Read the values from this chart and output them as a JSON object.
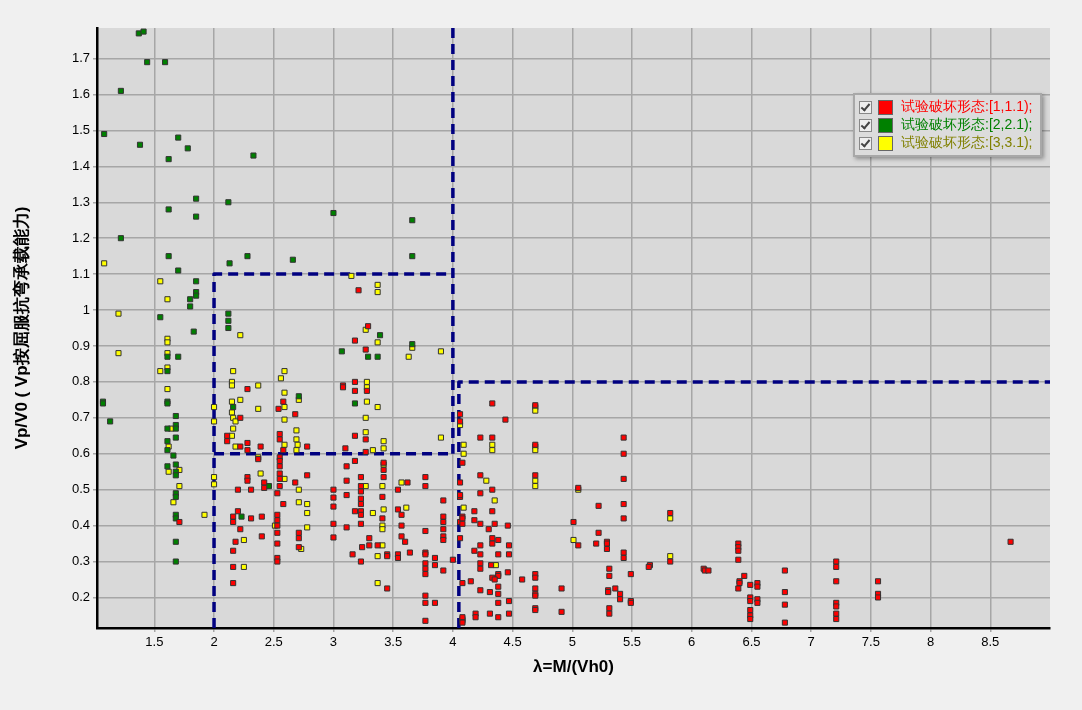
{
  "chart_data": {
    "type": "scatter",
    "xlabel": "λ=M/(Vh0)",
    "ylabel": "Vp/V0 ( Vp按屈服抗弯承载能力)",
    "xlim": [
      1.02,
      9.0
    ],
    "ylim": [
      0.115,
      1.785
    ],
    "xticks": [
      1.5,
      2,
      2.5,
      3,
      3.5,
      4,
      4.5,
      5,
      5.5,
      6,
      6.5,
      7,
      7.5,
      8,
      8.5
    ],
    "yticks": [
      0.2,
      0.3,
      0.4,
      0.5,
      0.6,
      0.7,
      0.8,
      0.9,
      1,
      1.1,
      1.2,
      1.3,
      1.4,
      1.5,
      1.6,
      1.7
    ],
    "grid": true,
    "legend": "top right",
    "marker": "square",
    "series": [
      {
        "name": "试验破坏形态:[1,1.1);",
        "color": "#ff0000",
        "x": [
          2.28,
          2.58,
          2.54,
          2.68,
          2.22,
          2.55,
          2.55,
          2.11,
          2.11,
          2.22,
          2.28,
          2.28,
          2.39,
          2.58,
          2.37,
          2.55,
          2.55,
          2.55,
          2.55,
          2.55,
          2.55,
          2.28,
          2.28,
          2.42,
          2.42,
          2.68,
          2.2,
          2.31,
          2.53,
          2.58,
          2.2,
          2.16,
          1.71,
          2.31,
          2.4,
          2.53,
          2.53,
          2.53,
          2.53,
          2.16,
          2.22,
          2.71,
          2.71,
          2.71,
          2.18,
          2.4,
          2.16,
          2.53,
          2.16,
          2.53,
          2.53,
          2.16,
          3.21,
          3.29,
          3.18,
          3.27,
          3.18,
          3.18,
          3.08,
          3.08,
          3.28,
          3.18,
          3.27,
          3.1,
          3.27,
          2.78,
          4.06,
          4.06,
          4.08,
          3.18,
          3.11,
          3.42,
          3.42,
          3.42,
          2.78,
          3.11,
          3.23,
          3.62,
          3.77,
          3.77,
          4.06,
          3.23,
          3.0,
          3.0,
          3.0,
          3.0,
          3.0,
          3.11,
          3.23,
          3.23,
          3.23,
          3.23,
          3.23,
          3.23,
          3.41,
          3.54,
          3.92,
          4.06,
          3.18,
          3.54,
          3.57,
          3.92,
          3.92,
          3.92,
          3.92,
          3.92,
          4.08,
          4.06,
          3.41,
          3.11,
          3.57,
          3.77,
          4.06,
          3.3,
          3.3,
          3.57,
          3.6,
          3.24,
          3.37,
          3.16,
          3.45,
          3.45,
          3.54,
          3.54,
          3.64,
          3.77,
          3.77,
          3.85,
          4.0,
          3.23,
          3.77,
          3.77,
          3.77,
          3.85,
          3.92,
          4.08,
          3.45,
          3.77,
          3.77,
          3.85,
          3.77,
          4.08,
          4.08,
          4.33,
          4.69,
          4.44,
          4.23,
          4.33,
          4.69,
          5.43,
          5.43,
          4.23,
          4.69,
          5.43,
          5.05,
          4.33,
          4.23,
          4.06,
          5.22,
          5.43,
          5.43,
          5.82,
          4.18,
          4.33,
          4.08,
          4.08,
          4.23,
          4.3,
          4.35,
          4.46,
          4.18,
          5.01,
          5.22,
          4.33,
          4.33,
          4.38,
          4.23,
          4.47,
          5.05,
          5.2,
          5.29,
          5.29,
          5.29,
          5.43,
          5.43,
          5.82,
          4.18,
          4.23,
          4.38,
          4.47,
          4.23,
          4.23,
          4.32,
          4.38,
          4.38,
          4.46,
          4.33,
          4.35,
          4.69,
          4.69,
          4.58,
          5.31,
          5.31,
          5.49,
          5.65,
          5.64,
          6.1,
          4.15,
          4.23,
          4.31,
          4.38,
          4.38,
          4.69,
          4.69,
          4.69,
          4.91,
          5.3,
          5.3,
          5.36,
          5.4,
          5.4,
          5.49,
          5.49,
          4.38,
          4.47,
          4.69,
          4.69,
          4.91,
          5.31,
          5.31,
          4.08,
          4.08,
          4.19,
          4.19,
          4.31,
          4.38,
          4.47,
          6.39,
          6.39,
          6.39,
          6.39,
          6.11,
          6.14,
          6.78,
          7.21,
          7.21,
          7.21,
          7.56,
          8.67,
          6.44,
          6.4,
          6.4,
          6.39,
          6.49,
          6.55,
          6.55,
          6.78,
          6.49,
          6.49,
          6.55,
          6.55,
          6.49,
          6.49,
          6.49,
          6.78,
          6.78,
          7.21,
          7.21,
          7.21,
          7.21,
          7.56,
          7.56
        ],
        "values": [
          0.78,
          0.745,
          0.725,
          0.71,
          0.7,
          0.655,
          0.64,
          0.65,
          0.635,
          0.62,
          0.63,
          0.61,
          0.62,
          0.61,
          0.585,
          0.59,
          0.58,
          0.565,
          0.545,
          0.53,
          0.51,
          0.535,
          0.525,
          0.52,
          0.505,
          0.52,
          0.5,
          0.5,
          0.49,
          0.46,
          0.44,
          0.425,
          0.41,
          0.42,
          0.425,
          0.43,
          0.415,
          0.4,
          0.38,
          0.41,
          0.39,
          0.38,
          0.365,
          0.34,
          0.355,
          0.37,
          0.33,
          0.35,
          0.285,
          0.31,
          0.3,
          0.24,
          1.055,
          0.955,
          0.915,
          0.89,
          0.8,
          0.775,
          0.79,
          0.785,
          0.775,
          0.65,
          0.64,
          0.615,
          0.605,
          0.62,
          0.71,
          0.69,
          0.575,
          0.58,
          0.565,
          0.575,
          0.555,
          0.535,
          0.54,
          0.525,
          0.535,
          0.52,
          0.535,
          0.51,
          0.52,
          0.51,
          0.5,
          0.478,
          0.453,
          0.405,
          0.367,
          0.485,
          0.495,
          0.475,
          0.46,
          0.44,
          0.43,
          0.405,
          0.48,
          0.5,
          0.47,
          0.48,
          0.44,
          0.445,
          0.43,
          0.425,
          0.41,
          0.39,
          0.37,
          0.36,
          0.425,
          0.41,
          0.42,
          0.395,
          0.4,
          0.385,
          0.365,
          0.365,
          0.345,
          0.37,
          0.355,
          0.34,
          0.345,
          0.32,
          0.32,
          0.315,
          0.32,
          0.31,
          0.325,
          0.325,
          0.32,
          0.31,
          0.305,
          0.3,
          0.295,
          0.28,
          0.265,
          0.29,
          0.275,
          0.24,
          0.225,
          0.205,
          0.185,
          0.185,
          0.135,
          0.14,
          0.135,
          0.74,
          0.735,
          0.695,
          0.645,
          0.645,
          0.625,
          0.645,
          0.6,
          0.54,
          0.54,
          0.53,
          0.505,
          0.5,
          0.49,
          0.485,
          0.455,
          0.46,
          0.42,
          0.435,
          0.44,
          0.44,
          0.42,
          0.405,
          0.405,
          0.39,
          0.405,
          0.4,
          0.415,
          0.41,
          0.38,
          0.365,
          0.35,
          0.36,
          0.345,
          0.345,
          0.345,
          0.35,
          0.355,
          0.35,
          0.335,
          0.325,
          0.31,
          0.3,
          0.33,
          0.32,
          0.32,
          0.32,
          0.295,
          0.28,
          0.29,
          0.265,
          0.26,
          0.27,
          0.255,
          0.25,
          0.265,
          0.255,
          0.25,
          0.28,
          0.26,
          0.265,
          0.29,
          0.285,
          0.28,
          0.245,
          0.22,
          0.215,
          0.23,
          0.21,
          0.225,
          0.21,
          0.205,
          0.225,
          0.22,
          0.215,
          0.225,
          0.21,
          0.195,
          0.19,
          0.185,
          0.185,
          0.19,
          0.17,
          0.165,
          0.16,
          0.17,
          0.155,
          0.145,
          0.13,
          0.155,
          0.145,
          0.155,
          0.145,
          0.155,
          0.35,
          0.34,
          0.33,
          0.305,
          0.275,
          0.275,
          0.275,
          0.3,
          0.285,
          0.245,
          0.245,
          0.355,
          0.26,
          0.245,
          0.24,
          0.225,
          0.235,
          0.24,
          0.23,
          0.215,
          0.2,
          0.19,
          0.195,
          0.185,
          0.165,
          0.15,
          0.14,
          0.18,
          0.13,
          0.185,
          0.175,
          0.155,
          0.14,
          0.21,
          0.2
        ]
      },
      {
        "name": "试验破坏形态:[2,2.1);",
        "color": "#008000",
        "x": [
          1.37,
          1.41,
          1.44,
          1.59,
          1.22,
          1.08,
          1.38,
          1.7,
          1.78,
          1.62,
          2.33,
          1.85,
          2.12,
          1.62,
          1.85,
          3.0,
          3.66,
          1.22,
          1.62,
          2.28,
          2.13,
          2.66,
          1.7,
          3.66,
          1.85,
          1.85,
          1.85,
          1.8,
          1.8,
          1.55,
          2.12,
          2.12,
          2.12,
          1.83,
          1.61,
          1.7,
          1.61,
          2.71,
          1.07,
          1.07,
          1.61,
          1.61,
          2.16,
          1.13,
          1.68,
          1.68,
          1.68,
          1.61,
          1.68,
          1.61,
          1.61,
          1.66,
          1.61,
          1.68,
          1.68,
          1.68,
          2.46,
          1.68,
          1.68,
          2.23,
          1.68,
          1.68,
          1.68,
          1.68,
          3.39,
          3.07,
          3.29,
          3.37,
          3.66,
          3.18
        ],
        "values": [
          1.77,
          1.775,
          1.69,
          1.69,
          1.61,
          1.49,
          1.46,
          1.48,
          1.45,
          1.42,
          1.43,
          1.31,
          1.3,
          1.28,
          1.26,
          1.27,
          1.25,
          1.2,
          1.15,
          1.15,
          1.13,
          1.14,
          1.11,
          1.15,
          1.08,
          1.05,
          1.04,
          1.03,
          1.01,
          0.98,
          0.99,
          0.97,
          0.95,
          0.94,
          0.87,
          0.87,
          0.83,
          0.76,
          0.745,
          0.74,
          0.745,
          0.74,
          0.73,
          0.69,
          0.705,
          0.68,
          0.67,
          0.67,
          0.645,
          0.635,
          0.61,
          0.595,
          0.565,
          0.57,
          0.55,
          0.54,
          0.51,
          0.49,
          0.48,
          0.425,
          0.43,
          0.42,
          0.355,
          0.3,
          0.93,
          0.885,
          0.87,
          0.87,
          0.905,
          0.74
        ]
      },
      {
        "name": "试验破坏形态:[3,3.1);",
        "color": "#ffff00",
        "x": [
          1.08,
          1.55,
          1.61,
          1.2,
          3.15,
          2.22,
          1.61,
          1.61,
          1.2,
          1.61,
          1.61,
          1.55,
          2.16,
          2.59,
          2.56,
          1.61,
          2.15,
          2.15,
          2.37,
          2.59,
          2.71,
          2.15,
          2.22,
          2.37,
          2.0,
          2.59,
          2.15,
          2.16,
          2.0,
          2.18,
          2.59,
          1.64,
          2.16,
          2.69,
          2.15,
          2.69,
          2.18,
          2.59,
          2.7,
          2.69,
          1.62,
          2.37,
          1.71,
          1.62,
          2.39,
          2.0,
          2.0,
          2.59,
          1.71,
          2.71,
          2.71,
          1.66,
          1.92,
          2.51,
          2.73,
          2.25,
          2.25,
          3.37,
          3.37,
          3.27,
          3.37,
          3.66,
          3.63,
          3.9,
          3.28,
          3.28,
          3.28,
          3.37,
          3.27,
          3.27,
          3.42,
          3.42,
          3.33,
          3.9,
          4.06,
          4.09,
          4.09,
          3.42,
          3.57,
          3.27,
          3.41,
          4.09,
          3.42,
          3.33,
          3.61,
          3.41,
          3.41,
          3.41,
          3.37,
          3.37,
          2.78,
          2.78,
          2.78,
          4.69,
          4.69,
          4.33,
          4.33,
          4.69,
          4.69,
          4.28,
          4.69,
          4.69,
          5.05,
          4.35,
          5.82,
          5.01,
          5.82,
          4.36
        ],
        "values": [
          1.13,
          1.08,
          1.03,
          0.99,
          1.095,
          0.93,
          0.92,
          0.91,
          0.88,
          0.88,
          0.84,
          0.83,
          0.83,
          0.83,
          0.81,
          0.78,
          0.8,
          0.79,
          0.79,
          0.77,
          0.75,
          0.745,
          0.75,
          0.725,
          0.73,
          0.73,
          0.715,
          0.7,
          0.69,
          0.69,
          0.695,
          0.67,
          0.67,
          0.665,
          0.65,
          0.64,
          0.62,
          0.625,
          0.625,
          0.61,
          0.62,
          0.59,
          0.555,
          0.55,
          0.545,
          0.535,
          0.515,
          0.53,
          0.51,
          0.5,
          0.465,
          0.465,
          0.43,
          0.4,
          0.335,
          0.36,
          0.285,
          1.07,
          1.05,
          0.945,
          0.91,
          0.895,
          0.87,
          0.885,
          0.8,
          0.785,
          0.745,
          0.73,
          0.7,
          0.66,
          0.635,
          0.615,
          0.61,
          0.645,
          0.68,
          0.625,
          0.6,
          0.57,
          0.52,
          0.51,
          0.51,
          0.45,
          0.445,
          0.435,
          0.45,
          0.4,
          0.39,
          0.345,
          0.315,
          0.24,
          0.46,
          0.435,
          0.395,
          0.73,
          0.72,
          0.625,
          0.61,
          0.62,
          0.61,
          0.525,
          0.525,
          0.51,
          0.5,
          0.47,
          0.42,
          0.36,
          0.315,
          0.29
        ]
      },
      {
        "type": "line",
        "color": "#000080",
        "line_style": "dashed",
        "marker": "none",
        "x": [
          2,
          2,
          4
        ],
        "values": [
          0.115,
          1.1,
          1.1
        ]
      },
      {
        "type": "line",
        "color": "#000080",
        "line_style": "dashed",
        "marker": "none",
        "x": [
          4,
          4
        ],
        "values": [
          1.785,
          0.6
        ]
      },
      {
        "type": "line",
        "color": "#000080",
        "line_style": "dashed",
        "marker": "none",
        "x": [
          2,
          4
        ],
        "values": [
          0.6,
          0.6
        ]
      },
      {
        "type": "line",
        "color": "#000080",
        "line_style": "dashed",
        "marker": "none",
        "x": [
          4.05,
          4.05,
          9.0
        ],
        "values": [
          0.115,
          0.8,
          0.8
        ]
      }
    ]
  }
}
